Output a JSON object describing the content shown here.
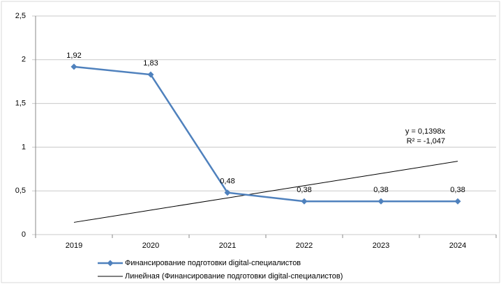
{
  "chart_data": {
    "type": "line",
    "categories": [
      "2019",
      "2020",
      "2021",
      "2022",
      "2023",
      "2024"
    ],
    "series": [
      {
        "name": "Финансирование подготовки digital-специалистов",
        "color": "#4f81bd",
        "marker": "diamond",
        "values": [
          1.92,
          1.83,
          0.48,
          0.38,
          0.38,
          0.38
        ],
        "value_labels": [
          "1,92",
          "1,83",
          "0,48",
          "0,38",
          "0,38",
          "0,38"
        ]
      },
      {
        "name": "Линейная (Финансирование подготовки digital-специалистов)",
        "color": "#000000",
        "marker": "none",
        "values": [
          0.1398,
          0.2796,
          0.4194,
          0.5592,
          0.699,
          0.8388
        ]
      }
    ],
    "annotations": [
      "y = 0,1398x",
      "R² = -1,047"
    ],
    "ylim": [
      0,
      2.5
    ],
    "yticks": [
      0,
      {
        "value": 0.5,
        "label": "0,5"
      },
      1,
      {
        "value": 1.5,
        "label": "1,5"
      },
      2,
      {
        "value": 2.5,
        "label": "2,5"
      }
    ],
    "grid": true,
    "legend": "bottom"
  }
}
